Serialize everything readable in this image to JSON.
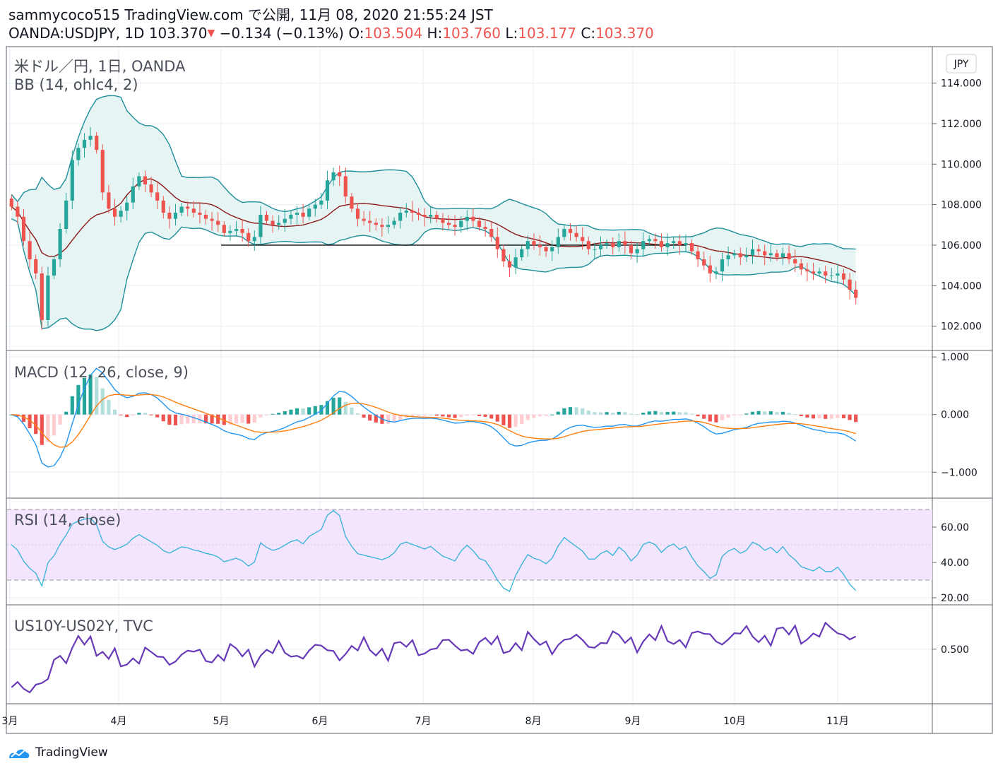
{
  "header": {
    "publisher": "sammycoco515 TradingView.com で公開, 11月 08, 2020 21:55:24 JST",
    "symbol": "OANDA:USDJPY, 1D",
    "last": "103.370",
    "change": "−0.134 (−0.13%)",
    "o_label": "O:",
    "o": "103.504",
    "h_label": "H:",
    "h": "103.760",
    "l_label": "L:",
    "l": "103.177",
    "c_label": "C:",
    "c": "103.370"
  },
  "panes": {
    "main": {
      "title": "米ドル／円, 1日, OANDA",
      "indicator": "BB (14, ohlc4, 2)",
      "currency_badge": "JPY"
    },
    "macd": {
      "title": "MACD (12, 26, close, 9)"
    },
    "rsi": {
      "title": "RSI (14, close)"
    },
    "spread": {
      "title": "US10Y-US02Y, TVC"
    }
  },
  "brand": "TradingView",
  "colors": {
    "up": "#26a69a",
    "down": "#ef5350",
    "bb_band": "#1e8f9a",
    "bb_basis": "#8b1a1a",
    "bb_fill": "#e6f4f3",
    "macd_line": "#2196f3",
    "signal_line": "#ff7f0e",
    "rsi_line": "#33b1d9",
    "rsi_fill": "#f3e5fd",
    "spread_line": "#673ab7",
    "grid": "#e6eef3"
  },
  "chart_data": [
    {
      "type": "candlestick",
      "pane": "main",
      "x_ticks": [
        "3月",
        "4月",
        "5月",
        "6月",
        "7月",
        "8月",
        "9月",
        "10月",
        "11月"
      ],
      "y_ticks": [
        "114.000",
        "112.000",
        "110.000",
        "108.000",
        "106.000",
        "104.000",
        "102.000"
      ],
      "ylim": [
        100.8,
        115.8
      ],
      "close": [
        107.9,
        107.4,
        106.2,
        105.3,
        104.6,
        102.3,
        104.5,
        105.3,
        106.8,
        108.2,
        110.2,
        110.8,
        111.2,
        111.4,
        110.7,
        108.6,
        107.8,
        107.4,
        107.7,
        108.1,
        108.9,
        109.4,
        109.0,
        108.6,
        108.2,
        107.6,
        107.3,
        107.6,
        107.9,
        107.8,
        107.6,
        107.5,
        107.3,
        107.2,
        107.0,
        106.6,
        106.7,
        106.8,
        106.6,
        106.2,
        106.4,
        107.5,
        107.2,
        107.0,
        107.1,
        107.3,
        107.5,
        107.6,
        107.4,
        107.8,
        108.0,
        108.2,
        109.2,
        109.6,
        109.4,
        108.4,
        107.8,
        107.3,
        107.2,
        107.1,
        107.0,
        106.9,
        107.0,
        107.2,
        107.6,
        107.7,
        107.6,
        107.5,
        107.4,
        107.5,
        107.3,
        107.1,
        107.0,
        106.9,
        107.2,
        107.4,
        107.2,
        106.9,
        106.8,
        106.4,
        105.8,
        105.2,
        104.9,
        105.4,
        105.8,
        106.2,
        106.0,
        105.9,
        105.7,
        105.9,
        106.4,
        106.8,
        106.6,
        106.4,
        106.2,
        105.8,
        105.8,
        106.0,
        106.1,
        105.9,
        106.2,
        106.0,
        105.6,
        105.8,
        106.2,
        106.3,
        106.2,
        105.9,
        106.1,
        106.2,
        106.0,
        106.1,
        105.7,
        105.3,
        105.0,
        104.6,
        104.7,
        105.3,
        105.5,
        105.6,
        105.4,
        105.5,
        105.8,
        105.7,
        105.5,
        105.6,
        105.4,
        105.6,
        105.3,
        105.1,
        104.8,
        104.7,
        104.6,
        104.7,
        104.5,
        104.5,
        104.6,
        104.3,
        103.8,
        103.4
      ]
    },
    {
      "type": "bar+line",
      "pane": "macd",
      "series": [
        "histogram",
        "macd",
        "signal"
      ],
      "y_ticks": [
        "1.000",
        "0.000",
        "−1.000"
      ],
      "ylim": [
        -1.45,
        1.1
      ]
    },
    {
      "type": "line",
      "pane": "rsi",
      "y_ticks": [
        "60.00",
        "40.00",
        "20.00"
      ],
      "ylim": [
        16,
        76
      ],
      "bands": [
        30,
        70
      ]
    },
    {
      "type": "line",
      "pane": "spread",
      "y_ticks": [
        "0.500"
      ],
      "ylim": [
        0.0,
        0.9
      ]
    }
  ]
}
